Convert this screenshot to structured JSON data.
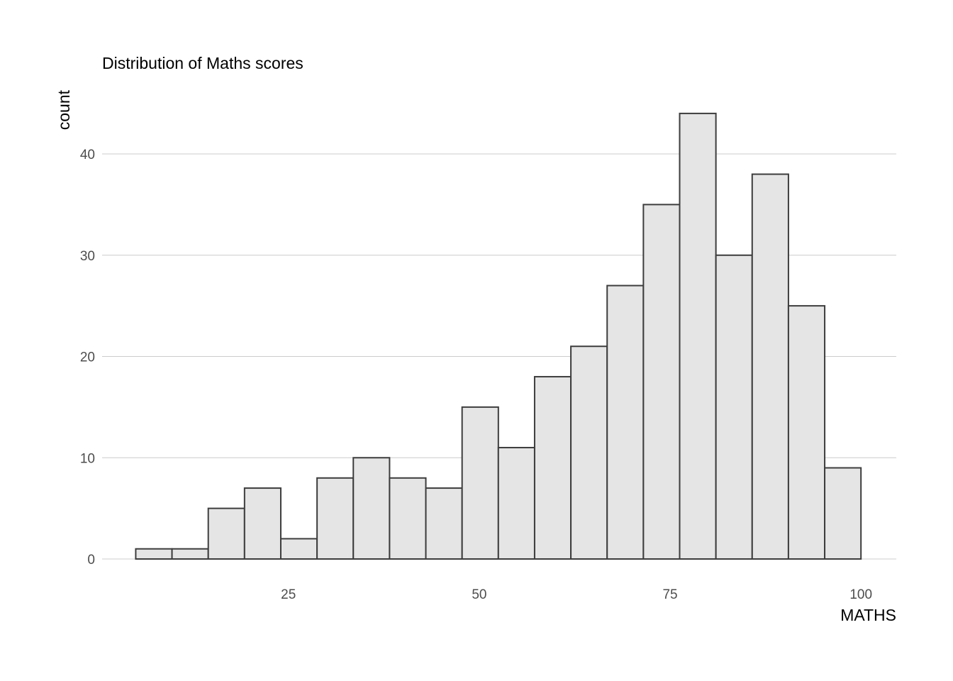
{
  "chart_data": {
    "type": "bar",
    "title": "Distribution of Maths scores",
    "xlabel": "MATHS",
    "ylabel": "count",
    "bin_width": 4.75,
    "bins": [
      {
        "x0": 5.0,
        "x1": 9.75,
        "count": 1
      },
      {
        "x0": 9.75,
        "x1": 14.5,
        "count": 1
      },
      {
        "x0": 14.5,
        "x1": 19.25,
        "count": 5
      },
      {
        "x0": 19.25,
        "x1": 24.0,
        "count": 7
      },
      {
        "x0": 24.0,
        "x1": 28.75,
        "count": 2
      },
      {
        "x0": 28.75,
        "x1": 33.5,
        "count": 8
      },
      {
        "x0": 33.5,
        "x1": 38.25,
        "count": 10
      },
      {
        "x0": 38.25,
        "x1": 43.0,
        "count": 8
      },
      {
        "x0": 43.0,
        "x1": 47.75,
        "count": 7
      },
      {
        "x0": 47.75,
        "x1": 52.5,
        "count": 15
      },
      {
        "x0": 52.5,
        "x1": 57.25,
        "count": 11
      },
      {
        "x0": 57.25,
        "x1": 62.0,
        "count": 18
      },
      {
        "x0": 62.0,
        "x1": 66.75,
        "count": 21
      },
      {
        "x0": 66.75,
        "x1": 71.5,
        "count": 27
      },
      {
        "x0": 71.5,
        "x1": 76.25,
        "count": 35
      },
      {
        "x0": 76.25,
        "x1": 81.0,
        "count": 44
      },
      {
        "x0": 81.0,
        "x1": 85.75,
        "count": 30
      },
      {
        "x0": 85.75,
        "x1": 90.5,
        "count": 38
      },
      {
        "x0": 90.5,
        "x1": 95.25,
        "count": 25
      },
      {
        "x0": 95.25,
        "x1": 100.0,
        "count": 9
      }
    ],
    "x_ticks": [
      25,
      50,
      75,
      100
    ],
    "y_ticks": [
      0,
      10,
      20,
      30,
      40
    ],
    "xlim": [
      0.25,
      104.75
    ],
    "ylim": [
      0,
      44
    ],
    "grid": "horizontal major gridlines only",
    "legend": "none",
    "colors": {
      "bar_fill": "#e5e5e5",
      "bar_outline": "#3d3d3d",
      "gridline": "#cccccc",
      "tick_text": "#4d4d4d",
      "title_text": "#000000"
    }
  }
}
